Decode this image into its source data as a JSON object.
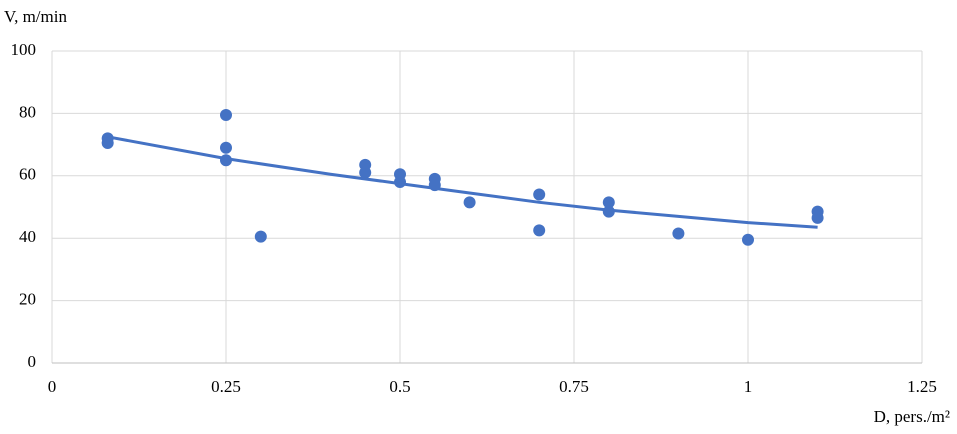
{
  "chart_data": {
    "type": "scatter",
    "y_label": "V, m/min",
    "x_label": "D, pers./m²",
    "xlim": [
      0,
      1.25
    ],
    "xticks": [
      0,
      0.25,
      0.5,
      0.75,
      1,
      1.25
    ],
    "ylim": [
      0,
      100
    ],
    "yticks": [
      0,
      20,
      40,
      60,
      80,
      100
    ],
    "grid": true,
    "series": [
      {
        "type": "scatter",
        "color": "#4472c4",
        "x": [
          0.08,
          0.08,
          0.25,
          0.25,
          0.25,
          0.3,
          0.45,
          0.45,
          0.5,
          0.5,
          0.55,
          0.55,
          0.6,
          0.7,
          0.7,
          0.8,
          0.8,
          0.9,
          1.0,
          1.1,
          1.1
        ],
        "values": [
          72,
          70.5,
          79.5,
          69,
          65,
          40.5,
          63.5,
          61,
          60.5,
          58,
          59,
          57,
          51.5,
          54,
          42.5,
          51.5,
          48.5,
          41.5,
          39.5,
          48.5,
          46.5
        ]
      },
      {
        "type": "line",
        "color": "#4472c4",
        "x": [
          0.08,
          0.25,
          0.4,
          0.5,
          0.6,
          0.7,
          0.8,
          0.9,
          1.0,
          1.1
        ],
        "values": [
          72.5,
          65.5,
          60.5,
          57.5,
          54.5,
          51.5,
          49,
          47,
          45,
          43.5
        ]
      }
    ]
  }
}
